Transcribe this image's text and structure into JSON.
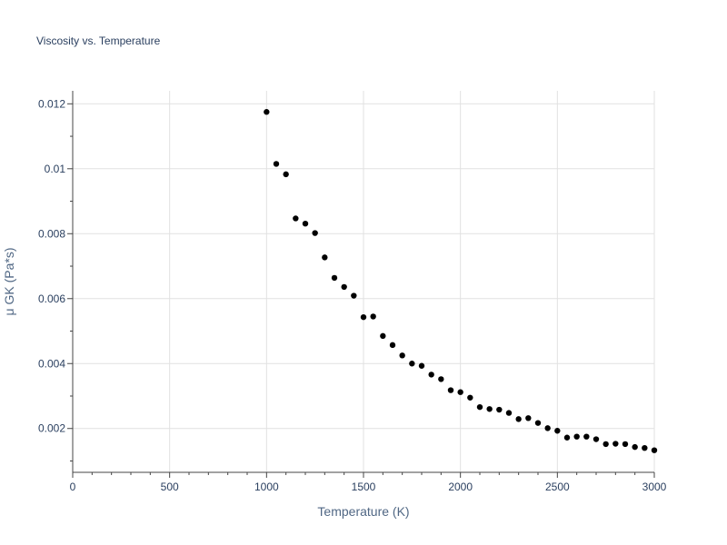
{
  "chart_data": {
    "type": "scatter",
    "title": "Viscosity vs. Temperature",
    "xlabel": "Temperature (K)",
    "ylabel": "μ GK (Pa*s)",
    "xlim": [
      0,
      3000
    ],
    "ylim": [
      0.00065,
      0.0124
    ],
    "x_ticks": [
      0,
      500,
      1000,
      1500,
      2000,
      2500,
      3000
    ],
    "x_tick_labels": [
      "0",
      "500",
      "1000",
      "1500",
      "2000",
      "2500",
      "3000"
    ],
    "y_ticks": [
      0.002,
      0.004,
      0.006,
      0.008,
      0.01,
      0.012
    ],
    "y_tick_labels": [
      "0.002",
      "0.004",
      "0.006",
      "0.008",
      "0.01",
      "0.012"
    ],
    "grid": true,
    "marker_color": "#000000",
    "x": [
      1000,
      1050,
      1100,
      1150,
      1200,
      1250,
      1300,
      1350,
      1400,
      1450,
      1500,
      1550,
      1600,
      1650,
      1700,
      1750,
      1800,
      1850,
      1900,
      1950,
      2000,
      2050,
      2100,
      2150,
      2200,
      2250,
      2300,
      2350,
      2400,
      2450,
      2500,
      2550,
      2600,
      2650,
      2700,
      2750,
      2800,
      2850,
      2900,
      2950,
      3000
    ],
    "y": [
      0.01175,
      0.01015,
      0.00983,
      0.00847,
      0.00831,
      0.00802,
      0.00727,
      0.00664,
      0.00636,
      0.00609,
      0.00543,
      0.00545,
      0.00485,
      0.00457,
      0.00425,
      0.004,
      0.00393,
      0.00366,
      0.00352,
      0.00318,
      0.00312,
      0.00295,
      0.00266,
      0.0026,
      0.00258,
      0.00248,
      0.00229,
      0.00232,
      0.00217,
      0.00201,
      0.00193,
      0.00172,
      0.00175,
      0.00175,
      0.00167,
      0.00152,
      0.00153,
      0.00152,
      0.00143,
      0.0014,
      0.00133
    ]
  }
}
